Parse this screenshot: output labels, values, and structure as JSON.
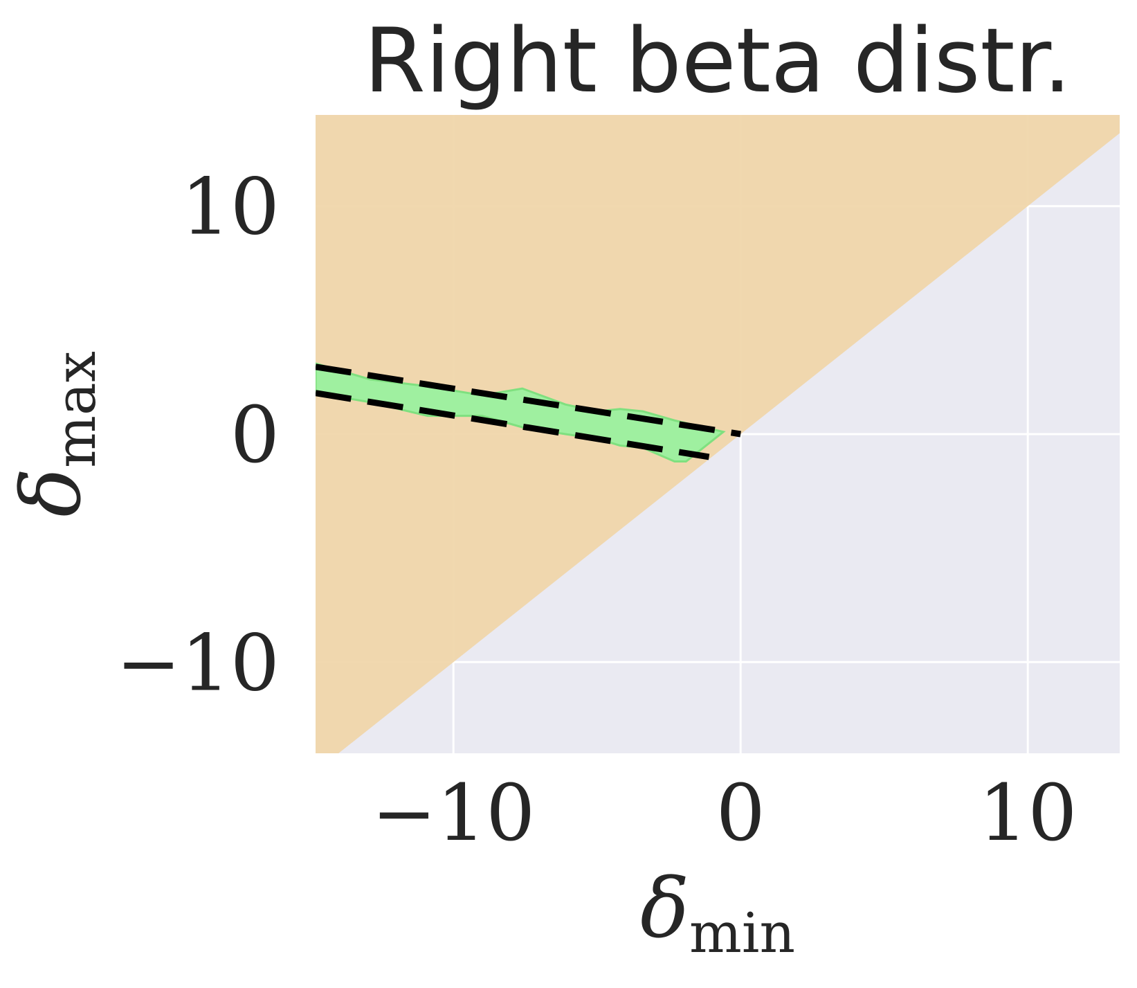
{
  "chart_data": {
    "type": "area",
    "title": "Right beta distr.",
    "xlabel": {
      "symbol": "δ",
      "subscript": "min"
    },
    "ylabel": {
      "symbol": "δ",
      "subscript": "max"
    },
    "xlim": [
      -14.8,
      13.2
    ],
    "ylim": [
      -14.0,
      14.0
    ],
    "xticks": [
      -10,
      0,
      10
    ],
    "yticks": [
      -10,
      0,
      10
    ],
    "xtick_labels": [
      "−10",
      "0",
      "10"
    ],
    "ytick_labels": [
      "−10",
      "0",
      "10"
    ],
    "grid": true,
    "regions": {
      "upper_triangle": {
        "description_values": "delta_max >= delta_min",
        "color": "#f0d5a8"
      },
      "background": {
        "color": "#eaeaf2"
      }
    },
    "band": {
      "color": "#9ff0a0",
      "upper": {
        "x": [
          -14.8,
          -12.9,
          -10.9,
          -9.0,
          -7.6,
          -6.1,
          -5.0,
          -4.2,
          -3.4,
          -2.3,
          -0.6
        ],
        "y": [
          3.1,
          2.4,
          2.1,
          1.7,
          2.0,
          1.3,
          1.0,
          1.1,
          1.0,
          0.6,
          0.1
        ]
      },
      "lower": {
        "x": [
          -14.8,
          -12.9,
          -10.9,
          -9.0,
          -7.6,
          -6.1,
          -5.0,
          -4.2,
          -3.4,
          -2.3,
          -1.9
        ],
        "y": [
          1.8,
          1.4,
          0.8,
          0.8,
          0.3,
          0.0,
          -0.2,
          -0.5,
          -0.6,
          -1.2,
          -1.2
        ]
      }
    },
    "dashed_lines": [
      {
        "x": [
          -14.8,
          0.0
        ],
        "y": [
          2.95,
          0.0
        ],
        "color": "#000000"
      },
      {
        "x": [
          -14.8,
          -1.1
        ],
        "y": [
          1.8,
          -1.0
        ],
        "color": "#000000"
      }
    ]
  }
}
